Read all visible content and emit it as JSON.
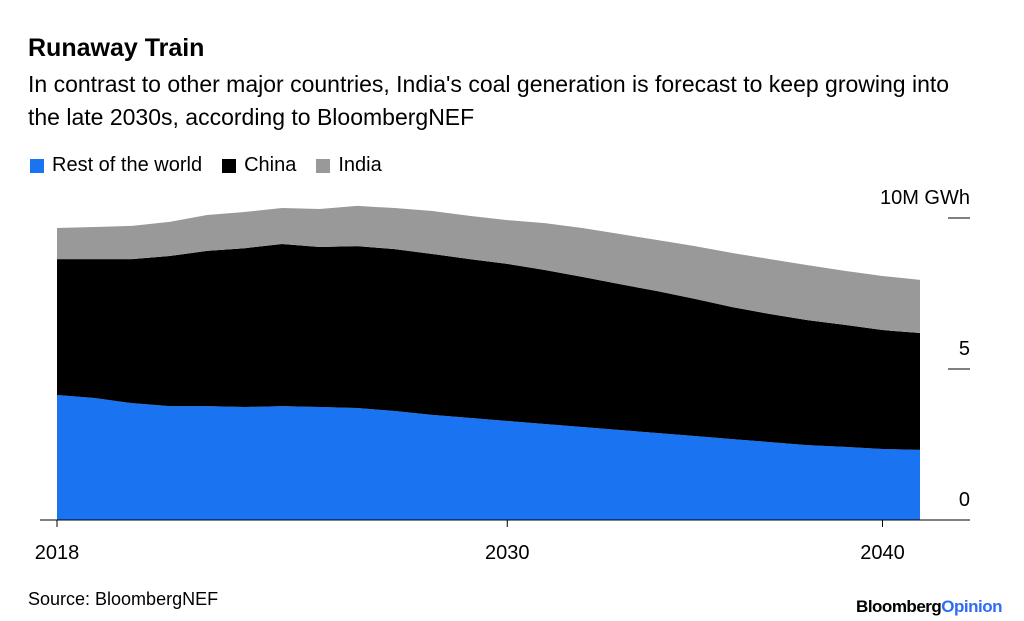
{
  "chart_data": {
    "type": "stacked-area",
    "title": "Runaway Train",
    "subtitle": "In contrast to other major countries, India's coal generation is forecast to keep growing into the late 2030s, according to BloombergNEF",
    "x": [
      2018,
      2019,
      2020,
      2021,
      2022,
      2023,
      2024,
      2025,
      2026,
      2027,
      2028,
      2029,
      2030,
      2031,
      2032,
      2033,
      2034,
      2035,
      2036,
      2037,
      2038,
      2039,
      2040,
      2041
    ],
    "series": [
      {
        "name": "Rest of the world",
        "color": "#1a73f0",
        "values": [
          4.14,
          4.04,
          3.87,
          3.77,
          3.77,
          3.74,
          3.77,
          3.74,
          3.71,
          3.61,
          3.48,
          3.38,
          3.28,
          3.18,
          3.08,
          2.98,
          2.88,
          2.78,
          2.68,
          2.58,
          2.48,
          2.42,
          2.35,
          2.32
        ]
      },
      {
        "name": "China",
        "color": "#000000",
        "values": [
          4.5,
          4.6,
          4.77,
          4.97,
          5.14,
          5.26,
          5.37,
          5.3,
          5.36,
          5.36,
          5.33,
          5.26,
          5.2,
          5.1,
          4.97,
          4.83,
          4.7,
          4.54,
          4.37,
          4.24,
          4.14,
          4.04,
          3.94,
          3.87
        ]
      },
      {
        "name": "India",
        "color": "#999999",
        "values": [
          1.03,
          1.06,
          1.1,
          1.13,
          1.19,
          1.2,
          1.19,
          1.26,
          1.33,
          1.36,
          1.42,
          1.43,
          1.45,
          1.55,
          1.62,
          1.66,
          1.69,
          1.75,
          1.79,
          1.82,
          1.82,
          1.79,
          1.79,
          1.76
        ]
      }
    ],
    "xlim": [
      2018,
      2041
    ],
    "xticks": [
      2018,
      2030,
      2040
    ],
    "ylim": [
      0,
      10
    ],
    "yticks": [
      0,
      5,
      {
        "value": 10,
        "label": "10M GWh"
      }
    ],
    "source": "Source: BloombergNEF",
    "brand": "Bloomberg",
    "brand_suffix": "Opinion"
  }
}
